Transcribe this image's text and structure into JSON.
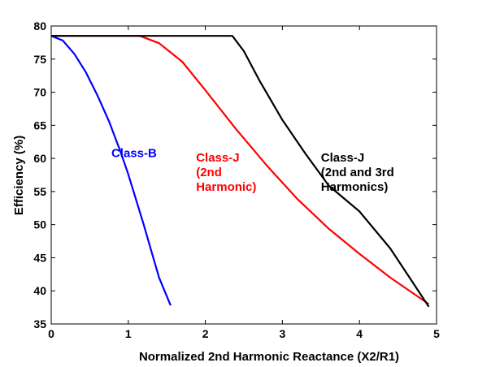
{
  "chart_data": {
    "type": "line",
    "xlabel": "Normalized 2nd Harmonic Reactance (X2/R1)",
    "ylabel": "Efficiency (%)",
    "xlim": [
      0,
      5
    ],
    "ylim": [
      35,
      80
    ],
    "xticks": [
      "0",
      "1",
      "2",
      "3",
      "4",
      "5"
    ],
    "yticks": [
      "35",
      "40",
      "45",
      "50",
      "55",
      "60",
      "65",
      "70",
      "75",
      "80"
    ],
    "grid": false,
    "series": [
      {
        "color": "#0000ff",
        "x": [
          0,
          0.15,
          0.3,
          0.45,
          0.6,
          0.75,
          0.9,
          1.0,
          1.1,
          1.2,
          1.3,
          1.4,
          1.55
        ],
        "y": [
          78.5,
          77.8,
          75.8,
          73.0,
          69.5,
          65.6,
          61.0,
          57.6,
          53.8,
          50.0,
          46.0,
          42.0,
          37.8
        ]
      },
      {
        "color": "#ff0000",
        "x": [
          0,
          0.5,
          1.0,
          1.15,
          1.4,
          1.7,
          2.0,
          2.4,
          2.8,
          3.2,
          3.6,
          4.0,
          4.4,
          4.9
        ],
        "y": [
          78.5,
          78.5,
          78.5,
          78.5,
          77.4,
          74.6,
          70.3,
          64.4,
          58.9,
          53.8,
          49.4,
          45.6,
          42.0,
          38.0
        ]
      },
      {
        "color": "#000000",
        "x": [
          0,
          1.0,
          2.0,
          2.35,
          2.5,
          2.7,
          3.0,
          3.3,
          3.6,
          4.0,
          4.4,
          4.9
        ],
        "y": [
          78.5,
          78.5,
          78.5,
          78.5,
          76.2,
          71.8,
          65.8,
          60.7,
          55.9,
          52.0,
          46.4,
          37.6
        ]
      }
    ],
    "annotations": [
      {
        "lines": [
          "Class-B"
        ],
        "color": "#0000ff",
        "x": 0.78,
        "y": 60.2
      },
      {
        "lines": [
          "Class-J",
          "(2nd",
          "Harmonic)"
        ],
        "color": "#ff0000",
        "x": 1.88,
        "y": 59.5
      },
      {
        "lines": [
          "Class-J",
          "(2nd and 3rd",
          "Harmonics)"
        ],
        "color": "#000000",
        "x": 3.5,
        "y": 59.5
      }
    ]
  }
}
